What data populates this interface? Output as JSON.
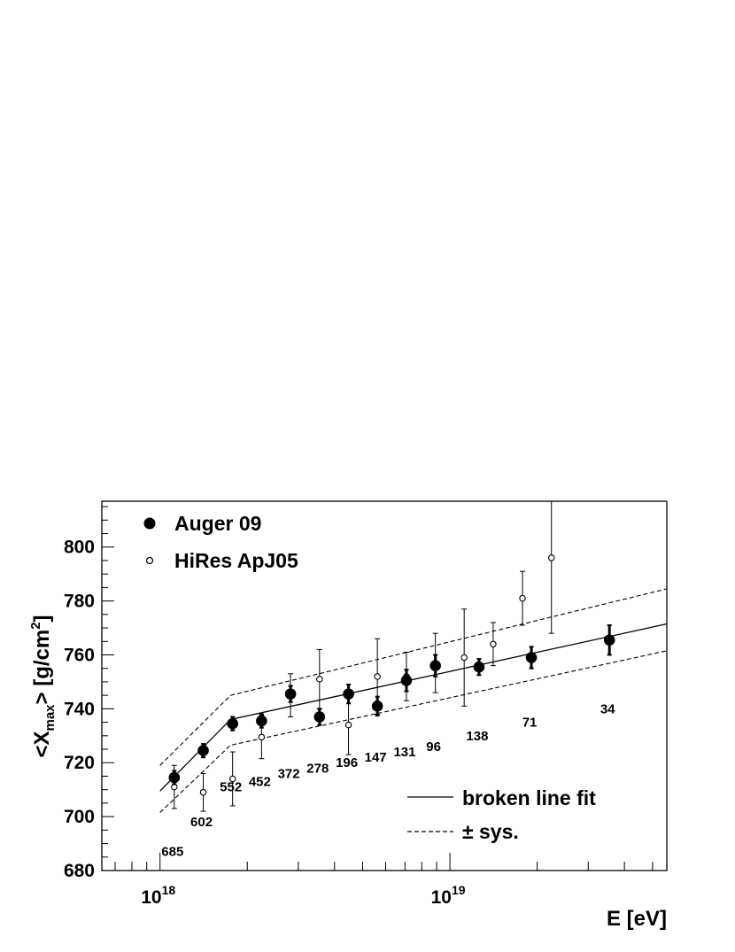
{
  "chart_data": {
    "type": "scatter",
    "title": "",
    "xlabel": "E [eV]",
    "ylabel_parts": {
      "open": "<X",
      "sub": "max",
      "mid": "> [g/cm",
      "sup": "2",
      "close": "]"
    },
    "xscale": "log",
    "xlim": [
      6.3e+17,
      5.6e+19
    ],
    "ylim": [
      680,
      817
    ],
    "yticks": [
      680,
      700,
      720,
      740,
      760,
      780,
      800
    ],
    "xticks_major": [
      {
        "value": 1e+18,
        "base": "10",
        "exp": "18"
      },
      {
        "value": 1e+19,
        "base": "10",
        "exp": "19"
      }
    ],
    "grid": false,
    "legend_main": {
      "placement": "top-left",
      "entries": [
        {
          "label": "Auger 09",
          "marker": "filled-circle"
        },
        {
          "label": "HiRes ApJ05",
          "marker": "open-circle"
        }
      ]
    },
    "legend_lines": {
      "placement": "bottom-right",
      "entries": [
        {
          "label": "broken line fit",
          "style": "solid"
        },
        {
          "label": "± sys.",
          "style": "dashed"
        }
      ]
    },
    "series": [
      {
        "name": "Auger 09",
        "marker": "filled-circle",
        "color": "#000000",
        "points": [
          {
            "x": 1.12e+18,
            "y": 714.5,
            "err": 2.5,
            "count": "685",
            "count_y": 687
          },
          {
            "x": 1.41e+18,
            "y": 724.5,
            "err": 2.5,
            "count": "602",
            "count_y": 698
          },
          {
            "x": 1.78e+18,
            "y": 734.5,
            "err": 2.5,
            "count": "552",
            "count_y": 711
          },
          {
            "x": 2.24e+18,
            "y": 735.5,
            "err": 2.5,
            "count": "452",
            "count_y": 713
          },
          {
            "x": 2.82e+18,
            "y": 745.5,
            "err": 3.0,
            "count": "372",
            "count_y": 716
          },
          {
            "x": 3.55e+18,
            "y": 737.0,
            "err": 3.0,
            "count": "278",
            "count_y": 718
          },
          {
            "x": 4.47e+18,
            "y": 745.5,
            "err": 3.5,
            "count": "196",
            "count_y": 720
          },
          {
            "x": 5.62e+18,
            "y": 741.0,
            "err": 3.5,
            "count": "147",
            "count_y": 722
          },
          {
            "x": 7.08e+18,
            "y": 750.5,
            "err": 4.0,
            "count": "131",
            "count_y": 724
          },
          {
            "x": 8.91e+18,
            "y": 756.0,
            "err": 4.0,
            "count": "96",
            "count_y": 726
          },
          {
            "x": 1.26e+19,
            "y": 755.5,
            "err": 3.0,
            "count": "138",
            "count_y": 730
          },
          {
            "x": 1.91e+19,
            "y": 759.0,
            "err": 4.0,
            "count": "71",
            "count_y": 735
          },
          {
            "x": 3.55e+19,
            "y": 765.5,
            "err": 5.5,
            "count": "34",
            "count_y": 740
          }
        ]
      },
      {
        "name": "HiRes ApJ05",
        "marker": "open-circle",
        "color": "#000000",
        "points": [
          {
            "x": 1.12e+18,
            "y": 711,
            "err_low": 8,
            "err_high": 8
          },
          {
            "x": 1.41e+18,
            "y": 709,
            "err_low": 7,
            "err_high": 7
          },
          {
            "x": 1.78e+18,
            "y": 714,
            "err_low": 10,
            "err_high": 10
          },
          {
            "x": 2.24e+18,
            "y": 729.5,
            "err_low": 8,
            "err_high": 8
          },
          {
            "x": 2.82e+18,
            "y": 745,
            "err_low": 8,
            "err_high": 8
          },
          {
            "x": 3.55e+18,
            "y": 751,
            "err_low": 11,
            "err_high": 11
          },
          {
            "x": 4.47e+18,
            "y": 734,
            "err_low": 11,
            "err_high": 11
          },
          {
            "x": 5.62e+18,
            "y": 752,
            "err_low": 14,
            "err_high": 14
          },
          {
            "x": 7.08e+18,
            "y": 752,
            "err_low": 9,
            "err_high": 9
          },
          {
            "x": 8.91e+18,
            "y": 757,
            "err_low": 11,
            "err_high": 11
          },
          {
            "x": 1.12e+19,
            "y": 759,
            "err_low": 18,
            "err_high": 18
          },
          {
            "x": 1.41e+19,
            "y": 764,
            "err_low": 8,
            "err_high": 8
          },
          {
            "x": 1.78e+19,
            "y": 781,
            "err_low": 10,
            "err_high": 10
          },
          {
            "x": 2.24e+19,
            "y": 796,
            "err_low": 28,
            "err_high": 25
          }
        ]
      }
    ],
    "fit_lines": [
      {
        "name": "broken line fit",
        "style": "solid",
        "points": [
          [
            1e+18,
            709.5
          ],
          [
            1.75e+18,
            736.0
          ],
          [
            5.6e+19,
            771.5
          ]
        ]
      },
      {
        "name": "+ sys.",
        "style": "dashed",
        "points": [
          [
            1e+18,
            719.0
          ],
          [
            1.75e+18,
            745.0
          ],
          [
            5.6e+19,
            784.5
          ]
        ]
      },
      {
        "name": "- sys.",
        "style": "dashed",
        "points": [
          [
            1e+18,
            701.5
          ],
          [
            1.75e+18,
            726.5
          ],
          [
            5.6e+19,
            761.5
          ]
        ]
      }
    ]
  }
}
